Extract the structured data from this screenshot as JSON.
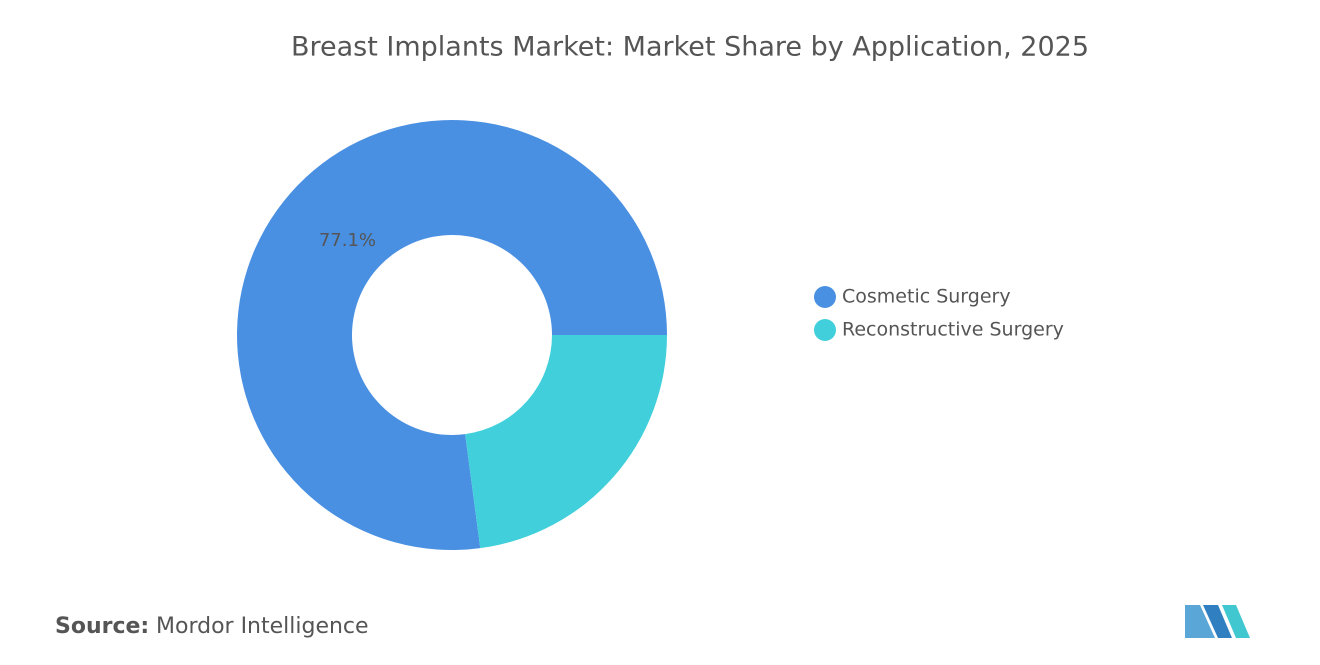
{
  "chart_data": {
    "type": "donut",
    "title": "Breast Implants Market: Market Share by Application, 2025",
    "categories": [
      "Cosmetic Surgery",
      "Reconstructive Surgery"
    ],
    "values": [
      77.1,
      22.9
    ],
    "value_labels": [
      "77.1%",
      null
    ],
    "colors": [
      "#4a90e2",
      "#41d0db"
    ],
    "source_label": "Source:",
    "source": "Mordor Intelligence"
  }
}
